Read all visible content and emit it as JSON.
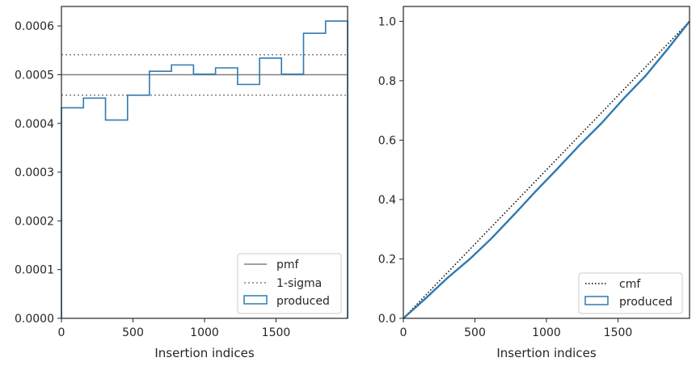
{
  "chart_data": [
    {
      "type": "histogram",
      "xlabel": "Insertion indices",
      "ylabel": "",
      "xlim": [
        0,
        2000
      ],
      "ylim": [
        0,
        0.00064
      ],
      "xticks": [
        "0",
        "500",
        "1000",
        "1500"
      ],
      "xtick_values": [
        0,
        500,
        1000,
        1500
      ],
      "yticks": [
        "0.0000",
        "0.0001",
        "0.0002",
        "0.0003",
        "0.0004",
        "0.0005",
        "0.0006"
      ],
      "ytick_values": [
        0,
        0.0001,
        0.0002,
        0.0003,
        0.0004,
        0.0005,
        0.0006
      ],
      "bin_edges": [
        0,
        154,
        308,
        462,
        615,
        769,
        923,
        1077,
        1231,
        1385,
        1538,
        1692,
        1846,
        2000
      ],
      "produced": [
        0.000432,
        0.000452,
        0.000407,
        0.000458,
        0.000507,
        0.00052,
        0.000501,
        0.000514,
        0.00048,
        0.000534,
        0.000501,
        0.000585,
        0.00061
      ],
      "pmf": 0.0005,
      "sigma_bounds": [
        0.000458,
        0.000541
      ],
      "legend": {
        "placement": "lower-right",
        "entries": [
          "pmf",
          "1-sigma",
          "produced"
        ]
      },
      "colors": {
        "produced": "#2f7ab0",
        "pmf": "#808080",
        "sigma": "#808080"
      }
    },
    {
      "type": "line",
      "xlabel": "Insertion indices",
      "ylabel": "",
      "xlim": [
        0,
        2000
      ],
      "ylim": [
        0,
        1.05
      ],
      "xticks": [
        "0",
        "500",
        "1000",
        "1500"
      ],
      "xtick_values": [
        0,
        500,
        1000,
        1500
      ],
      "yticks": [
        "0.0",
        "0.2",
        "0.4",
        "0.6",
        "0.8",
        "1.0"
      ],
      "ytick_values": [
        0,
        0.2,
        0.4,
        0.6,
        0.8,
        1.0
      ],
      "cmf": {
        "x": [
          0,
          2000
        ],
        "y": [
          0,
          1.0
        ]
      },
      "produced": {
        "x": [
          0,
          154,
          308,
          462,
          615,
          769,
          923,
          1077,
          1231,
          1385,
          1538,
          1692,
          1846,
          2000
        ],
        "y": [
          0,
          0.0665,
          0.136,
          0.1987,
          0.2688,
          0.3468,
          0.4268,
          0.5039,
          0.583,
          0.6569,
          0.739,
          0.8161,
          0.906,
          1.0
        ]
      },
      "legend": {
        "placement": "lower-right",
        "entries": [
          "cmf",
          "produced"
        ]
      },
      "colors": {
        "produced": "#2f7ab0",
        "cmf": "#000000"
      }
    }
  ]
}
